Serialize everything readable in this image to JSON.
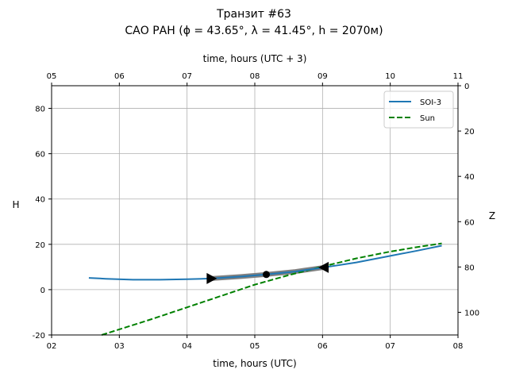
{
  "chart_data": {
    "type": "line",
    "title": "Транзит #63",
    "subtitle": "САО РАН (ϕ = 43.65°, λ = 41.45°, h = 2070м)",
    "xlabel": "time, hours (UTC)",
    "xlabel_top": "time, hours (UTC + 3)",
    "ylabel": "H",
    "ylabel_right": "Z",
    "xlim": [
      2,
      8
    ],
    "ylim": [
      -20,
      90
    ],
    "xticks": [
      "02",
      "03",
      "04",
      "05",
      "06",
      "07",
      "08"
    ],
    "xticks_top": [
      "05",
      "06",
      "07",
      "08",
      "09",
      "10",
      "11"
    ],
    "yticks": [
      -20,
      0,
      20,
      40,
      60,
      80
    ],
    "yticks_right": [
      0,
      20,
      40,
      60,
      80,
      100
    ],
    "grid": true,
    "legend_position": "top-right",
    "series": [
      {
        "name": "SOI-3",
        "color": "#1f77b4",
        "style": "solid",
        "x": [
          2.55,
          2.8,
          3.2,
          3.6,
          4.0,
          4.36,
          4.8,
          5.17,
          5.6,
          6.02,
          6.5,
          7.0,
          7.4,
          7.76
        ],
        "y": [
          5.2,
          4.8,
          4.4,
          4.4,
          4.6,
          4.9,
          5.8,
          6.7,
          8.0,
          9.8,
          12.0,
          14.9,
          17.2,
          19.4
        ]
      },
      {
        "name": "Sun",
        "color": "#008000",
        "style": "dashed",
        "x": [
          2.74,
          3.5,
          4.0,
          4.5,
          5.0,
          5.5,
          6.0,
          6.5,
          7.0,
          7.4,
          7.76
        ],
        "y": [
          -20,
          -12.8,
          -7.8,
          -2.8,
          2.2,
          6.4,
          10.2,
          13.8,
          16.8,
          18.8,
          20.4
        ]
      }
    ],
    "visible_segment": {
      "x": [
        4.36,
        4.8,
        5.17,
        5.6,
        6.02
      ],
      "y": [
        4.9,
        5.8,
        6.7,
        8.0,
        9.8
      ]
    },
    "markers": [
      {
        "type": "start-triangle-right",
        "x": 4.36,
        "y": 4.9
      },
      {
        "type": "mid-circle",
        "x": 5.17,
        "y": 6.7
      },
      {
        "type": "end-triangle-left",
        "x": 6.02,
        "y": 9.8
      }
    ]
  }
}
